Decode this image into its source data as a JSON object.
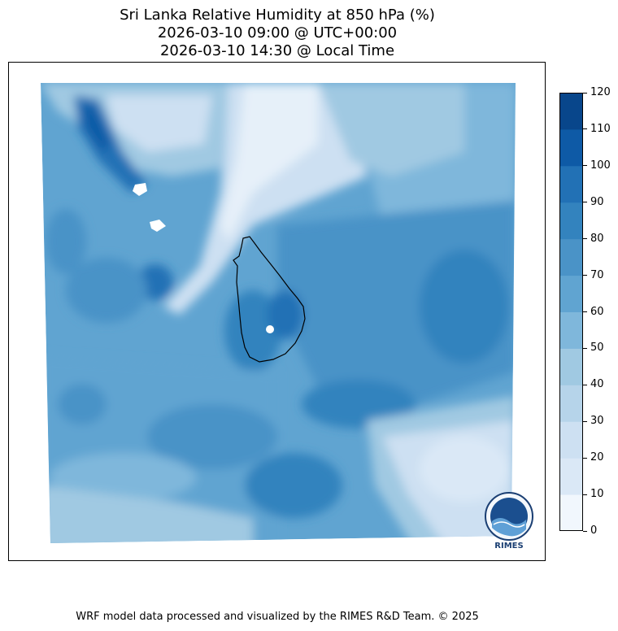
{
  "title": {
    "line1": "Sri Lanka Relative Humidity at 850 hPa (%)",
    "line2": "2026-03-10 09:00 @ UTC+00:00",
    "line3": "2026-03-10 14:30 @ Local Time"
  },
  "colorbar": {
    "ticks": [
      "0",
      "10",
      "20",
      "30",
      "40",
      "50",
      "60",
      "70",
      "80",
      "90",
      "100",
      "110",
      "120"
    ],
    "colors": [
      "#f1f7fd",
      "#dae8f6",
      "#cde0f2",
      "#b6d4ea",
      "#a0c9e2",
      "#7fb7db",
      "#60a4d1",
      "#4a93c7",
      "#3383be",
      "#2271b5",
      "#0e5aa6",
      "#08468b"
    ]
  },
  "logo": {
    "text": "RIMES"
  },
  "footer": "WRF model data processed and visualized by the RIMES R&D Team. © 2025"
}
